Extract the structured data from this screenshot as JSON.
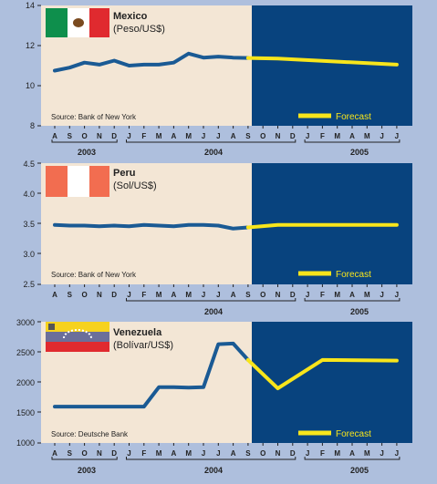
{
  "months": [
    "A",
    "S",
    "O",
    "N",
    "D",
    "J",
    "F",
    "M",
    "A",
    "M",
    "J",
    "J",
    "A",
    "S",
    "O",
    "N",
    "D",
    "J",
    "F",
    "M",
    "A",
    "M",
    "J",
    "J"
  ],
  "years": [
    "2003",
    "2004",
    "2005"
  ],
  "colors": {
    "page_bg": "#aebfdd",
    "history_bg": "#f3e6d5",
    "forecast_bg": "#08437e",
    "history_line": "#1a5a94",
    "forecast_line": "#f8e51b"
  },
  "chart_data": [
    {
      "type": "line",
      "country": "Mexico",
      "title": "Mexico",
      "subtitle": "(Peso/US$)",
      "source": "Source: Bank of New York",
      "forecast_label": "Forecast",
      "flag": "mexico-flag",
      "ylim": [
        8,
        14
      ],
      "yticks": [
        "14",
        "12",
        "10",
        "8"
      ],
      "x": [
        "2003-08",
        "2003-09",
        "2003-10",
        "2003-11",
        "2003-12",
        "2004-01",
        "2004-02",
        "2004-03",
        "2004-04",
        "2004-05",
        "2004-06",
        "2004-07",
        "2004-08",
        "2004-09"
      ],
      "history": [
        10.75,
        10.9,
        11.15,
        11.05,
        11.25,
        11.0,
        11.05,
        11.05,
        11.15,
        11.6,
        11.4,
        11.45,
        11.4,
        11.38
      ],
      "forecast_x": [
        "2004-09",
        "2004-11",
        "2005-07"
      ],
      "forecast": [
        11.38,
        11.35,
        11.05
      ]
    },
    {
      "type": "line",
      "country": "Peru",
      "title": "Peru",
      "subtitle": "(Sol/US$)",
      "source": "Source: Bank of New York",
      "forecast_label": "Forecast",
      "flag": "peru-flag",
      "ylim": [
        2.5,
        4.5
      ],
      "yticks": [
        "4.5",
        "4.0",
        "3.5",
        "3.0",
        "2.5"
      ],
      "x": [
        "2003-08",
        "2003-09",
        "2003-10",
        "2003-11",
        "2003-12",
        "2004-01",
        "2004-02",
        "2004-03",
        "2004-04",
        "2004-05",
        "2004-06",
        "2004-07",
        "2004-08",
        "2004-09"
      ],
      "history": [
        3.48,
        3.47,
        3.47,
        3.46,
        3.47,
        3.46,
        3.48,
        3.47,
        3.46,
        3.48,
        3.48,
        3.47,
        3.42,
        3.44
      ],
      "forecast_x": [
        "2004-09",
        "2004-11",
        "2005-07"
      ],
      "forecast": [
        3.44,
        3.48,
        3.48
      ]
    },
    {
      "type": "line",
      "country": "Venezuela",
      "title": "Venezuela",
      "subtitle": "(Bolívar/US$)",
      "source": "Source: Deutsche Bank",
      "forecast_label": "Forecast",
      "flag": "venezuela-flag",
      "ylim": [
        1000,
        3000
      ],
      "yticks": [
        "3000",
        "2500",
        "2000",
        "1500",
        "1000"
      ],
      "x": [
        "2003-08",
        "2003-09",
        "2003-10",
        "2003-11",
        "2003-12",
        "2004-01",
        "2004-02",
        "2004-03",
        "2004-04",
        "2004-05",
        "2004-06",
        "2004-07",
        "2004-08",
        "2004-09"
      ],
      "history": [
        1600,
        1600,
        1600,
        1600,
        1600,
        1600,
        1600,
        1920,
        1920,
        1915,
        1920,
        2630,
        2640,
        2370
      ],
      "forecast_x": [
        "2004-09",
        "2004-11",
        "2005-02",
        "2005-07"
      ],
      "forecast": [
        2370,
        1900,
        2370,
        2360
      ]
    }
  ]
}
